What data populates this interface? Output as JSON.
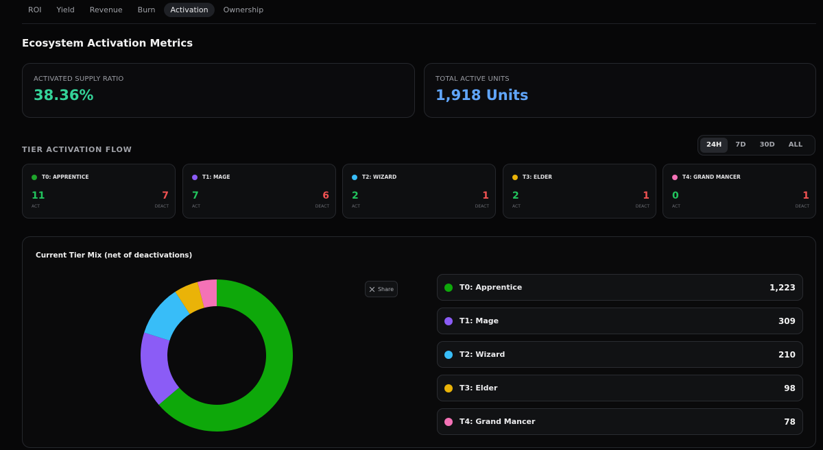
{
  "tabs": [
    {
      "label": "ROI",
      "active": false
    },
    {
      "label": "Yield",
      "active": false
    },
    {
      "label": "Revenue",
      "active": false
    },
    {
      "label": "Burn",
      "active": false
    },
    {
      "label": "Activation",
      "active": true
    },
    {
      "label": "Ownership",
      "active": false
    }
  ],
  "page_title": "Ecosystem Activation Metrics",
  "stats": {
    "supply_ratio": {
      "label": "ACTIVATED SUPPLY RATIO",
      "value": "38.36%",
      "color": "#34d399"
    },
    "active_units": {
      "label": "TOTAL ACTIVE UNITS",
      "value": "1,918 Units",
      "color": "#60a5fa"
    }
  },
  "flow": {
    "section_label": "TIER ACTIVATION FLOW",
    "ranges": [
      {
        "label": "24H",
        "active": true
      },
      {
        "label": "7D",
        "active": false
      },
      {
        "label": "30D",
        "active": false
      },
      {
        "label": "ALL",
        "active": false
      }
    ],
    "act_label": "ACT",
    "deact_label": "DEACT",
    "tiers": [
      {
        "name": "T0: APPRENTICE",
        "act": "11",
        "deact": "7",
        "color": "#1fa52c"
      },
      {
        "name": "T1: MAGE",
        "act": "7",
        "deact": "6",
        "color": "#8b5cf6"
      },
      {
        "name": "T2: WIZARD",
        "act": "2",
        "deact": "1",
        "color": "#38bdf8"
      },
      {
        "name": "T3: ELDER",
        "act": "2",
        "deact": "1",
        "color": "#eab308"
      },
      {
        "name": "T4: GRAND MANCER",
        "act": "0",
        "deact": "1",
        "color": "#f472b6"
      }
    ]
  },
  "mix": {
    "title": "Current Tier Mix (net of deactivations)",
    "share_label": "Share",
    "share_icon": "x-logo-icon"
  },
  "chart_data": {
    "type": "pie",
    "donut": true,
    "title": "Current Tier Mix (net of deactivations)",
    "categories": [
      "T0: Apprentice",
      "T1: Mage",
      "T2: Wizard",
      "T3: Elder",
      "T4: Grand Mancer"
    ],
    "values": [
      1223,
      309,
      210,
      98,
      78
    ],
    "value_labels": [
      "1,223",
      "309",
      "210",
      "98",
      "78"
    ],
    "colors": [
      "#0ea80a",
      "#8b5cf6",
      "#38bdf8",
      "#eab308",
      "#f472b6"
    ],
    "legend": "right"
  }
}
